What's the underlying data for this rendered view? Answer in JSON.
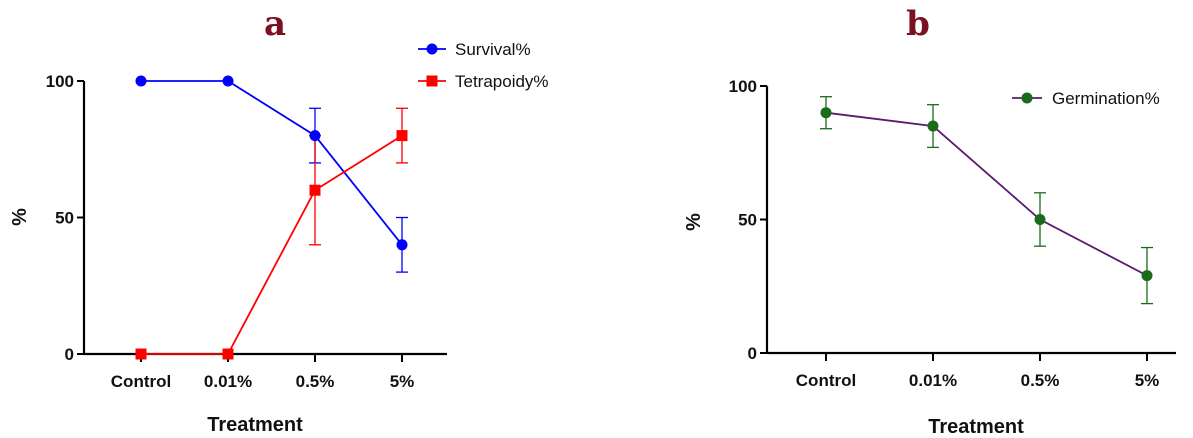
{
  "chart_data": [
    {
      "type": "line",
      "panel_label": "a",
      "categories": [
        "Control",
        "0.01%",
        "0.5%",
        "5%"
      ],
      "xlabel": "Treatment",
      "ylabel": "%",
      "ylim": [
        0,
        100
      ],
      "yticks": [
        "0",
        "50",
        "100"
      ],
      "grid": false,
      "legend_position": "top-right",
      "series": [
        {
          "name": "Survival%",
          "color": "#0000ff",
          "marker": "circle",
          "values": [
            100,
            100,
            80,
            40
          ],
          "error": [
            0,
            0,
            10,
            10
          ]
        },
        {
          "name": "Tetrapoidy%",
          "color": "#ff0000",
          "marker": "square",
          "values": [
            0,
            0,
            60,
            80
          ],
          "error": [
            0,
            0,
            20,
            10
          ]
        }
      ]
    },
    {
      "type": "line",
      "panel_label": "b",
      "categories": [
        "Control",
        "0.01%",
        "0.5%",
        "5%"
      ],
      "xlabel": "Treatment",
      "ylabel": "%",
      "ylim": [
        0,
        100
      ],
      "yticks": [
        "0",
        "50",
        "100"
      ],
      "grid": false,
      "legend_position": "top-right",
      "series": [
        {
          "name": "Germination%",
          "color": "#5a1a6e",
          "marker_color": "#1a6b1a",
          "marker": "circle",
          "values": [
            90,
            85,
            50,
            29
          ],
          "error": [
            6,
            8,
            10,
            10.5
          ]
        }
      ]
    }
  ]
}
